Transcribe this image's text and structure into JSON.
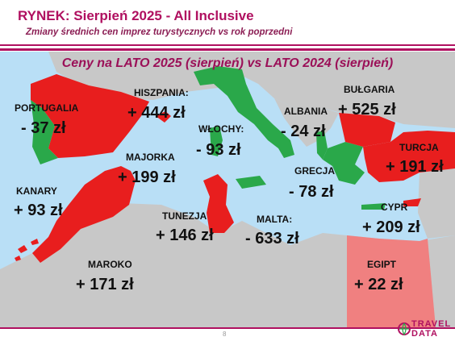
{
  "header": {
    "title": "RYNEK: Sierpień 2025 - All Inclusive",
    "subtitle": "Zmiany średnich cen imprez turystycznych vs rok poprzedni"
  },
  "map": {
    "title": "Ceny na LATO 2025 (sierpień) vs  LATO 2024 (sierpień)",
    "colors": {
      "sea": "#b9dff6",
      "land": "#c8c8c8",
      "increase": "#e81e1e",
      "decrease": "#2aa84a",
      "small_increase": "#f08080"
    },
    "countries": [
      {
        "name": "PORTUGALIA",
        "value": "- 37 zł",
        "trend": "decrease"
      },
      {
        "name": "HISZPANIA:",
        "value": "+ 444 zł",
        "trend": "increase"
      },
      {
        "name": "WŁOCHY:",
        "value": "- 93 zł",
        "trend": "decrease"
      },
      {
        "name": "ALBANIA",
        "value": "- 24 zł",
        "trend": "decrease"
      },
      {
        "name": "BUŁGARIA",
        "value": "+ 525 zł",
        "trend": "increase"
      },
      {
        "name": "TURCJA",
        "value": "+ 191 zł",
        "trend": "increase"
      },
      {
        "name": "MAJORKA",
        "value": "+ 199 zł",
        "trend": "increase"
      },
      {
        "name": "GRECJA",
        "value": "- 78 zł",
        "trend": "decrease"
      },
      {
        "name": "KANARY",
        "value": "+ 93 zł",
        "trend": "increase"
      },
      {
        "name": "TUNEZJA",
        "value": "+ 146 zł",
        "trend": "increase"
      },
      {
        "name": "MALTA:",
        "value": "- 633 zł",
        "trend": "decrease"
      },
      {
        "name": "CYPR",
        "value": "+ 209 zł",
        "trend": "increase"
      },
      {
        "name": "MAROKO",
        "value": "+ 171 zł",
        "trend": "increase"
      },
      {
        "name": "EGIPT",
        "value": "+ 22 zł",
        "trend": "increase"
      }
    ]
  },
  "footer": {
    "page_number": "8",
    "logo_line1": "TRAVEL",
    "logo_line2": "DATA"
  }
}
